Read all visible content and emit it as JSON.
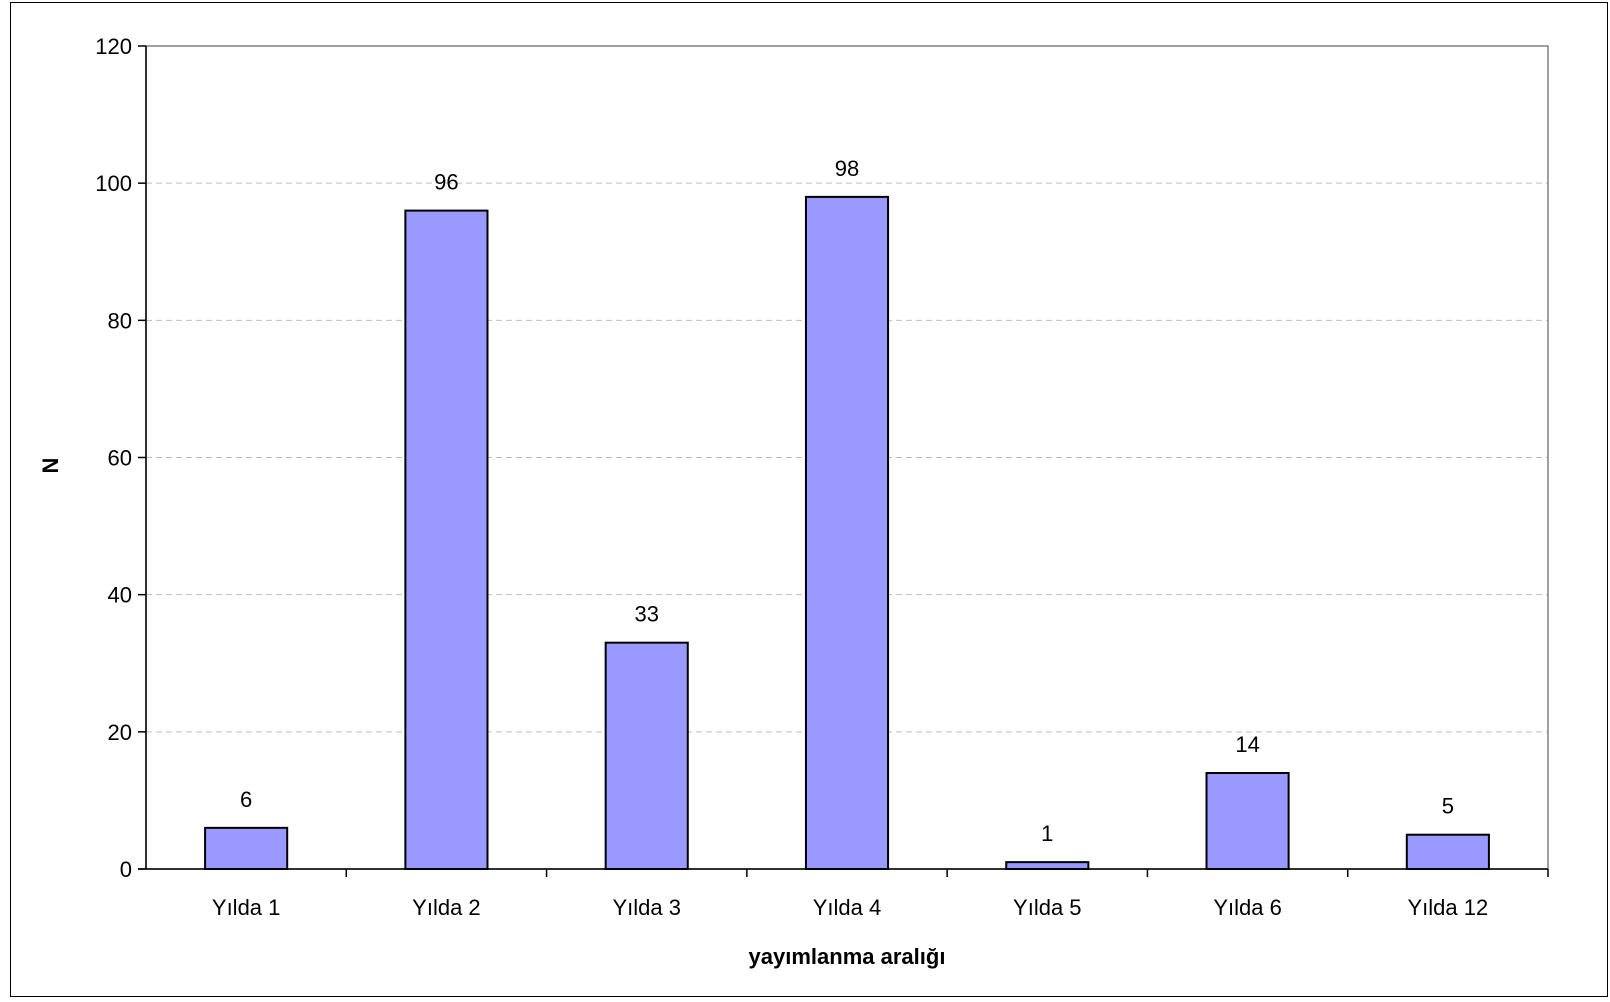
{
  "chart_data": {
    "type": "bar",
    "title": "",
    "xlabel": "yayımlanma aralığı",
    "ylabel": "N",
    "categories": [
      "Yılda 1",
      "Yılda 2",
      "Yılda 3",
      "Yılda 4",
      "Yılda 5",
      "Yılda 6",
      "Yılda 12"
    ],
    "values": [
      6,
      96,
      33,
      98,
      1,
      14,
      5
    ],
    "ylim": [
      0,
      120
    ],
    "yticks": [
      0,
      20,
      40,
      60,
      80,
      100,
      120
    ],
    "grid": "horizontal-dashed",
    "legend": "none",
    "data_labels": true,
    "colors": {
      "bar_fill": "#9999ff",
      "bar_stroke": "#000000",
      "grid": "#bfbfbf",
      "axis": "#000000"
    }
  }
}
